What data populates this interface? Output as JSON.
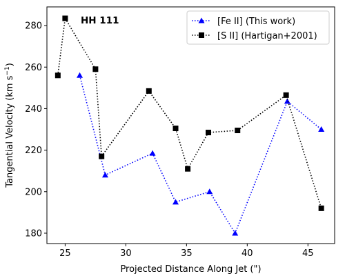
{
  "chart_data": {
    "type": "line",
    "xlabel": "Projected Distance Along Jet (\")",
    "ylabel": "Tangential Velocity (km s",
    "ylabel_sup": "−1",
    "ylabel_end": ")",
    "xlim": [
      23.5,
      47.2
    ],
    "ylim": [
      175,
      289
    ],
    "xticks": [
      25,
      30,
      35,
      40,
      45
    ],
    "yticks": [
      180,
      200,
      220,
      240,
      260,
      280
    ],
    "annotation": "HH 111",
    "legend_position": "top-right",
    "grid": false,
    "series": [
      {
        "name": "[Fe II] (This work)",
        "color": "#0000ff",
        "marker": "triangle",
        "linestyle": "dotted",
        "x": [
          26.2,
          28.3,
          32.2,
          34.1,
          36.9,
          39.0,
          43.3,
          46.1
        ],
        "y": [
          256,
          208,
          218.5,
          195,
          200,
          180,
          243.5,
          230
        ]
      },
      {
        "name": "[S II] (Hartigan+2001)",
        "color": "#000000",
        "marker": "square",
        "linestyle": "dotted",
        "x": [
          24.4,
          25.0,
          27.5,
          28.0,
          31.9,
          34.1,
          35.1,
          36.8,
          39.2,
          43.2,
          46.1
        ],
        "y": [
          256,
          283.5,
          259,
          217,
          248.5,
          230.5,
          211,
          228.5,
          229.5,
          246.5,
          192
        ]
      }
    ]
  }
}
